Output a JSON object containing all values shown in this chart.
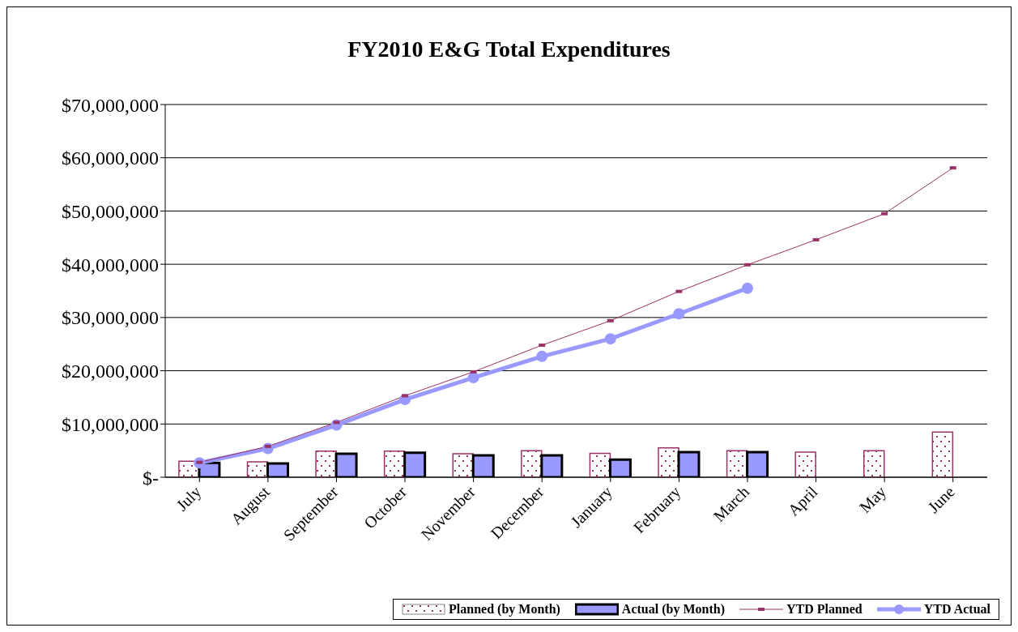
{
  "chart_data": {
    "type": "bar",
    "title": "FY2010 E&G Total Expenditures",
    "categories": [
      "July",
      "August",
      "September",
      "October",
      "November",
      "December",
      "January",
      "February",
      "March",
      "April",
      "May",
      "June"
    ],
    "series": [
      {
        "name": "Planned (by Month)",
        "color": "#993366",
        "values": [
          3000000,
          2900000,
          4900000,
          4900000,
          4400000,
          5000000,
          4500000,
          5500000,
          5000000,
          4700000,
          5000000,
          8500000
        ]
      },
      {
        "name": "Actual (by Month)",
        "color": "#9999ff",
        "values": [
          2700000,
          2600000,
          4400000,
          4600000,
          4100000,
          4100000,
          3300000,
          4700000,
          4700000,
          null,
          null,
          null
        ]
      },
      {
        "name": "YTD Planned",
        "type": "line",
        "color": "#993366",
        "marker": "square",
        "values": [
          2800000,
          5800000,
          10300000,
          15300000,
          19800000,
          24800000,
          29400000,
          34900000,
          39900000,
          44600000,
          49500000,
          58100000
        ]
      },
      {
        "name": "YTD Actual",
        "type": "line",
        "color": "#9999ff",
        "marker": "circle",
        "values": [
          2700000,
          5400000,
          9800000,
          14600000,
          18700000,
          22700000,
          26000000,
          30700000,
          35500000,
          null,
          null,
          null
        ]
      }
    ],
    "ylim": [
      0,
      70000000
    ],
    "yticks": [
      {
        "value": 0,
        "label": "$-"
      },
      {
        "value": 10000000,
        "label": "$10,000,000"
      },
      {
        "value": 20000000,
        "label": "$20,000,000"
      },
      {
        "value": 30000000,
        "label": "$30,000,000"
      },
      {
        "value": 40000000,
        "label": "$40,000,000"
      },
      {
        "value": 50000000,
        "label": "$50,000,000"
      },
      {
        "value": 60000000,
        "label": "$60,000,000"
      },
      {
        "value": 70000000,
        "label": "$70,000,000"
      }
    ],
    "grid": "y",
    "legend": "bottom right"
  }
}
